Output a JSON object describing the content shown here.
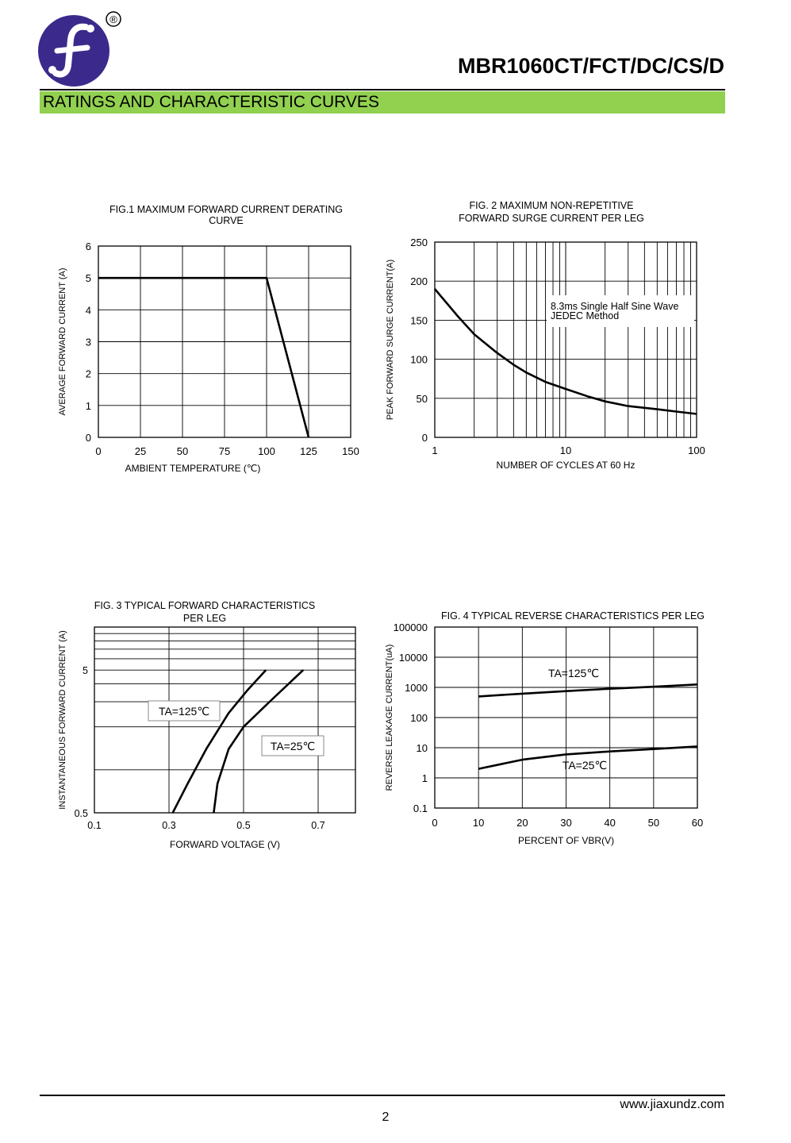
{
  "header": {
    "logo_icon": "jiaxun-f-logo",
    "registered_mark": "®",
    "part_number": "MBR1060CT/FCT/DC/CS/D",
    "section_title": "RATINGS AND CHARACTERISTIC CURVES",
    "section_bar_color": "#92d050",
    "logo_color": "#3b2a8c"
  },
  "footer": {
    "website": "www.jiaxundz.com",
    "page_number": "2"
  },
  "chart_data": [
    {
      "id": "fig1",
      "type": "line",
      "title_lines": [
        "FIG.1 MAXIMUM FORWARD CURRENT DERATING",
        "CURVE"
      ],
      "xlabel": "AMBIENT TEMPERATURE (℃)",
      "ylabel": "AVERAGE FORWARD CURRENT (A)",
      "xlim": [
        0,
        150
      ],
      "ylim": [
        0,
        6
      ],
      "xticks": [
        0,
        25,
        50,
        75,
        100,
        125,
        150
      ],
      "yticks": [
        0,
        1,
        2,
        3,
        4,
        5,
        6
      ],
      "grid": true,
      "series": [
        {
          "x": [
            0,
            100,
            125
          ],
          "y": [
            5,
            5,
            0
          ]
        }
      ]
    },
    {
      "id": "fig2",
      "type": "line",
      "title_lines": [
        "FIG. 2 MAXIMUM NON-REPETITIVE",
        "FORWARD SURGE CURRENT PER LEG"
      ],
      "xlabel": "NUMBER OF CYCLES AT 60 Hz",
      "ylabel": "PEAK FORWARD SURGE CURRENT(A)",
      "xscale": "log",
      "xlim": [
        1,
        100
      ],
      "ylim": [
        0,
        250
      ],
      "xticks": [
        1,
        10,
        100
      ],
      "yticks": [
        0,
        50,
        100,
        150,
        200,
        250
      ],
      "grid": true,
      "annotations": [
        "8.3ms Single Half Sine Wave",
        "JEDEC Method"
      ],
      "series": [
        {
          "x": [
            1,
            1.5,
            2,
            3,
            4,
            5,
            7,
            10,
            15,
            20,
            30,
            50,
            70,
            100
          ],
          "y": [
            190,
            155,
            132,
            108,
            93,
            83,
            71,
            62,
            52,
            46,
            40,
            36,
            33,
            30
          ]
        }
      ]
    },
    {
      "id": "fig3",
      "type": "line",
      "title_lines": [
        "FIG. 3 TYPICAL FORWARD CHARACTERISTICS",
        "PER LEG"
      ],
      "xlabel": "FORWARD VOLTAGE (V)",
      "ylabel": "INSTANTANEOUS FORWARD CURRENT (A)",
      "yscale": "log",
      "xlim": [
        0.1,
        0.8
      ],
      "ylim": [
        0.5,
        10
      ],
      "xticks": [
        0.1,
        0.3,
        0.5,
        0.7
      ],
      "ytick_labels": [
        "0.5",
        "5"
      ],
      "yticks": [
        0.5,
        5
      ],
      "grid": true,
      "series": [
        {
          "name": "TA=125℃",
          "x": [
            0.31,
            0.35,
            0.4,
            0.46,
            0.51,
            0.56
          ],
          "y": [
            0.5,
            0.8,
            1.4,
            2.5,
            3.6,
            5
          ]
        },
        {
          "name": "TA=25℃",
          "x": [
            0.42,
            0.43,
            0.46,
            0.5,
            0.57,
            0.66
          ],
          "y": [
            0.5,
            0.8,
            1.4,
            2.0,
            3.0,
            5
          ]
        }
      ]
    },
    {
      "id": "fig4",
      "type": "line",
      "title_lines": [
        "FIG. 4 TYPICAL REVERSE CHARACTERISTICS PER LEG"
      ],
      "xlabel": "PERCENT OF VBR(V)",
      "ylabel": "REVERSE LEAKAGE CURRENT(uA)",
      "yscale": "log",
      "xlim": [
        0,
        60
      ],
      "ylim": [
        0.1,
        100000
      ],
      "xticks": [
        0,
        10,
        20,
        30,
        40,
        50,
        60
      ],
      "ytick_labels": [
        "0.1",
        "1",
        "10",
        "100",
        "1000",
        "10000",
        "100000"
      ],
      "yticks": [
        0.1,
        1,
        10,
        100,
        1000,
        10000,
        100000
      ],
      "grid": true,
      "series": [
        {
          "name": "TA=125℃",
          "x": [
            10,
            20,
            30,
            40,
            50,
            60
          ],
          "y": [
            500,
            620,
            750,
            900,
            1050,
            1250
          ]
        },
        {
          "name": "TA=25℃",
          "x": [
            10,
            20,
            30,
            40,
            50,
            60
          ],
          "y": [
            2,
            4,
            6,
            7.5,
            9,
            11
          ]
        }
      ]
    }
  ]
}
